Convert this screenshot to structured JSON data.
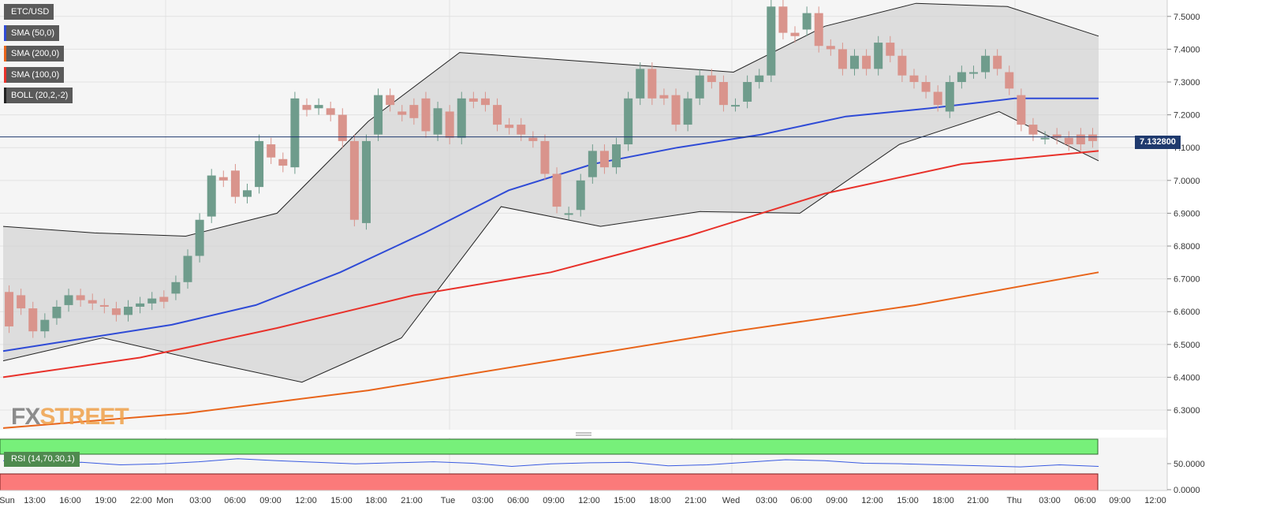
{
  "chart_data": {
    "type": "candlestick",
    "symbol": "ETC/USD",
    "indicators": [
      {
        "name": "SMA (50,0)",
        "color": "#2f4bd6"
      },
      {
        "name": "SMA (200,0)",
        "color": "#e8641a"
      },
      {
        "name": "SMA (100,0)",
        "color": "#e8312a"
      },
      {
        "name": "BOLL (20,2,-2)",
        "color": "#222222"
      }
    ],
    "rsi": {
      "name": "RSI (14,70,30,1)",
      "overbought": 70,
      "oversold": 30,
      "color": "#3a5be0",
      "ticks": [
        "50.0000",
        "0.0000"
      ]
    },
    "current_price": "7.132800",
    "y_ticks": [
      "7.5000",
      "7.4000",
      "7.3000",
      "7.2000",
      "7.1000",
      "7.0000",
      "6.9000",
      "6.8000",
      "6.7000",
      "6.6000",
      "6.5000",
      "6.4000",
      "6.3000"
    ],
    "ylim": [
      6.24,
      7.55
    ],
    "x_ticks": [
      "Sun",
      "13:00",
      "16:00",
      "19:00",
      "22:00",
      "Mon",
      "03:00",
      "06:00",
      "09:00",
      "12:00",
      "15:00",
      "18:00",
      "21:00",
      "Tue",
      "03:00",
      "06:00",
      "09:00",
      "12:00",
      "15:00",
      "18:00",
      "21:00",
      "Wed",
      "03:00",
      "06:00",
      "09:00",
      "12:00",
      "15:00",
      "18:00",
      "21:00",
      "Thu",
      "03:00",
      "06:00",
      "09:00",
      "12:00"
    ],
    "candle_interval": "1H",
    "candles": [
      [
        6.66,
        6.555
      ],
      [
        6.65,
        6.61
      ],
      [
        6.61,
        6.54
      ],
      [
        6.54,
        6.575
      ],
      [
        6.58,
        6.615
      ],
      [
        6.62,
        6.65
      ],
      [
        6.65,
        6.635
      ],
      [
        6.635,
        6.625
      ],
      [
        6.62,
        6.615
      ],
      [
        6.61,
        6.59
      ],
      [
        6.59,
        6.615
      ],
      [
        6.615,
        6.625
      ],
      [
        6.625,
        6.64
      ],
      [
        6.645,
        6.63
      ],
      [
        6.655,
        6.69
      ],
      [
        6.69,
        6.77
      ],
      [
        6.77,
        6.88
      ],
      [
        6.89,
        7.015
      ],
      [
        7.01,
        7.0
      ],
      [
        7.03,
        6.95
      ],
      [
        6.95,
        6.97
      ],
      [
        6.98,
        7.12
      ],
      [
        7.11,
        7.07
      ],
      [
        7.065,
        7.045
      ],
      [
        7.04,
        7.25
      ],
      [
        7.23,
        7.215
      ],
      [
        7.22,
        7.23
      ],
      [
        7.22,
        7.2
      ],
      [
        7.2,
        7.12
      ],
      [
        7.12,
        6.88
      ],
      [
        6.87,
        7.12
      ],
      [
        7.14,
        7.26
      ],
      [
        7.26,
        7.23
      ],
      [
        7.21,
        7.2
      ],
      [
        7.23,
        7.19
      ],
      [
        7.25,
        7.15
      ],
      [
        7.14,
        7.22
      ],
      [
        7.21,
        7.13
      ],
      [
        7.13,
        7.25
      ],
      [
        7.25,
        7.24
      ],
      [
        7.25,
        7.23
      ],
      [
        7.23,
        7.17
      ],
      [
        7.17,
        7.16
      ],
      [
        7.17,
        7.14
      ],
      [
        7.13,
        7.12
      ],
      [
        7.12,
        7.02
      ],
      [
        7.02,
        6.92
      ],
      [
        6.9,
        6.9
      ],
      [
        6.91,
        7.0
      ],
      [
        7.01,
        7.09
      ],
      [
        7.09,
        7.04
      ],
      [
        7.04,
        7.11
      ],
      [
        7.11,
        7.25
      ],
      [
        7.25,
        7.34
      ],
      [
        7.34,
        7.25
      ],
      [
        7.26,
        7.25
      ],
      [
        7.26,
        7.17
      ],
      [
        7.17,
        7.25
      ],
      [
        7.25,
        7.32
      ],
      [
        7.32,
        7.3
      ],
      [
        7.3,
        7.23
      ],
      [
        7.23,
        7.23
      ],
      [
        7.24,
        7.3
      ],
      [
        7.3,
        7.32
      ],
      [
        7.32,
        7.53
      ],
      [
        7.53,
        7.45
      ],
      [
        7.45,
        7.44
      ],
      [
        7.46,
        7.51
      ],
      [
        7.51,
        7.41
      ],
      [
        7.41,
        7.4
      ],
      [
        7.4,
        7.34
      ],
      [
        7.34,
        7.38
      ],
      [
        7.38,
        7.34
      ],
      [
        7.34,
        7.42
      ],
      [
        7.42,
        7.38
      ],
      [
        7.38,
        7.32
      ],
      [
        7.32,
        7.3
      ],
      [
        7.3,
        7.27
      ],
      [
        7.27,
        7.23
      ],
      [
        7.21,
        7.3
      ],
      [
        7.3,
        7.33
      ],
      [
        7.33,
        7.33
      ],
      [
        7.33,
        7.38
      ],
      [
        7.38,
        7.34
      ],
      [
        7.33,
        7.28
      ],
      [
        7.26,
        7.17
      ],
      [
        7.17,
        7.14
      ],
      [
        7.13,
        7.13
      ],
      [
        7.14,
        7.13
      ],
      [
        7.13,
        7.11
      ],
      [
        7.14,
        7.11
      ],
      [
        7.14,
        7.12
      ]
    ],
    "sma50": [
      6.48,
      6.52,
      6.56,
      6.62,
      6.72,
      6.84,
      6.97,
      7.05,
      7.1,
      7.14,
      7.195,
      7.22,
      7.25,
      7.25
    ],
    "sma100": [
      6.4,
      6.46,
      6.55,
      6.65,
      6.72,
      6.83,
      6.96,
      7.05,
      7.09
    ],
    "sma200": [
      6.245,
      6.29,
      6.36,
      6.45,
      6.54,
      6.62,
      6.72
    ],
    "boll_upper": [
      6.86,
      6.84,
      6.83,
      6.9,
      7.18,
      7.39,
      7.37,
      7.35,
      7.33,
      7.47,
      7.54,
      7.53,
      7.44
    ],
    "boll_lower": [
      6.45,
      6.52,
      6.45,
      6.385,
      6.52,
      6.92,
      6.86,
      6.905,
      6.9,
      7.11,
      7.21,
      7.06
    ],
    "rsi_values": [
      58,
      52,
      55,
      50,
      52,
      56,
      62,
      58,
      55,
      52,
      54,
      56,
      53,
      47,
      52,
      54,
      55,
      48,
      50,
      55,
      60,
      58,
      53,
      52,
      50,
      48,
      46,
      50,
      47
    ]
  }
}
